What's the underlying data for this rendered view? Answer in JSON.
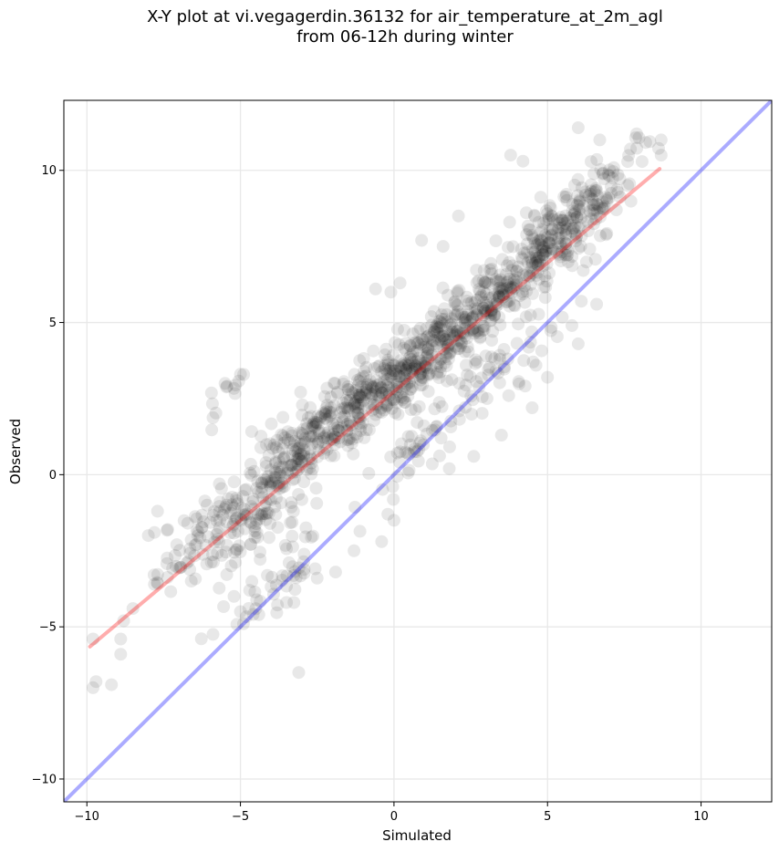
{
  "chart_data": {
    "type": "scatter",
    "title_line1": "X-Y plot at vi.vegagerdin.36132 for air_temperature_at_2m_agl",
    "title_line2": "from 06-12h during winter",
    "xlabel": "Simulated",
    "ylabel": "Observed",
    "xlim": [
      -10.75,
      12.3
    ],
    "ylim": [
      -10.75,
      12.3
    ],
    "xticks": [
      -10,
      -5,
      0,
      5,
      10
    ],
    "yticks": [
      -10,
      -5,
      0,
      5,
      10
    ],
    "xtick_labels": [
      "−10",
      "−5",
      "0",
      "5",
      "10"
    ],
    "ytick_labels": [
      "−10",
      "−5",
      "0",
      "5",
      "10"
    ],
    "grid": true,
    "point_color": "#000000",
    "point_alpha": 0.09,
    "series": [
      {
        "kind": "reference-line",
        "color": "#0000ff",
        "x": [
          -10.75,
          12.3
        ],
        "y": [
          -10.75,
          12.3
        ]
      },
      {
        "kind": "fit-line",
        "color": "#ff0000",
        "x": [
          -9.9,
          8.65
        ],
        "y": [
          -5.65,
          10.05
        ]
      }
    ],
    "clusters": [
      {
        "cx": 0.3,
        "cy": 3.4,
        "sx": 1.3,
        "sy": 1.0,
        "n": 240
      },
      {
        "cx": 1.8,
        "cy": 4.5,
        "sx": 1.2,
        "sy": 1.0,
        "n": 160
      },
      {
        "cx": 3.8,
        "cy": 6.3,
        "sx": 1.2,
        "sy": 1.1,
        "n": 150
      },
      {
        "cx": 5.4,
        "cy": 7.8,
        "sx": 1.1,
        "sy": 1.2,
        "n": 150
      },
      {
        "cx": 6.5,
        "cy": 9.0,
        "sx": 1.0,
        "sy": 1.1,
        "n": 60
      },
      {
        "cx": -1.8,
        "cy": 2.0,
        "sx": 1.2,
        "sy": 1.2,
        "n": 140
      },
      {
        "cx": -3.4,
        "cy": 0.6,
        "sx": 1.1,
        "sy": 1.2,
        "n": 130
      },
      {
        "cx": -4.5,
        "cy": -1.4,
        "sx": 0.9,
        "sy": 1.3,
        "n": 100
      },
      {
        "cx": -6.5,
        "cy": -2.1,
        "sx": 0.8,
        "sy": 1.0,
        "n": 55
      },
      {
        "cx": 1.2,
        "cy": 1.3,
        "sx": 1.1,
        "sy": 1.1,
        "n": 60
      },
      {
        "cx": 3.5,
        "cy": 3.4,
        "sx": 1.0,
        "sy": 1.0,
        "n": 40
      },
      {
        "cx": -3.6,
        "cy": -3.5,
        "sx": 0.9,
        "sy": 0.9,
        "n": 45
      },
      {
        "cx": -5.5,
        "cy": 2.5,
        "sx": 0.5,
        "sy": 0.6,
        "n": 12
      }
    ],
    "outliers": [
      [
        -9.8,
        -7.0
      ],
      [
        -9.7,
        -6.8
      ],
      [
        -9.2,
        -6.9
      ],
      [
        -9.8,
        -5.4
      ],
      [
        -8.9,
        -5.9
      ],
      [
        -8.9,
        -5.4
      ],
      [
        -8.8,
        -4.8
      ],
      [
        -8.5,
        -4.4
      ],
      [
        -8.0,
        -2.0
      ],
      [
        -7.8,
        -1.9
      ],
      [
        -7.7,
        -1.2
      ],
      [
        -7.8,
        -3.6
      ],
      [
        -6.6,
        -3.5
      ],
      [
        -3.1,
        -6.5
      ],
      [
        -5.0,
        -4.5
      ],
      [
        -4.9,
        -4.9
      ],
      [
        -4.7,
        -3.8
      ],
      [
        -5.3,
        -3.0
      ],
      [
        -5.0,
        3.3
      ],
      [
        -5.5,
        3.0
      ],
      [
        0.9,
        7.7
      ],
      [
        1.6,
        7.5
      ],
      [
        2.1,
        8.5
      ],
      [
        3.8,
        10.5
      ],
      [
        4.2,
        10.3
      ],
      [
        6.0,
        11.4
      ],
      [
        6.7,
        11.0
      ],
      [
        7.7,
        10.7
      ],
      [
        7.9,
        11.2
      ],
      [
        8.7,
        11.0
      ],
      [
        8.7,
        10.5
      ],
      [
        -0.6,
        6.1
      ],
      [
        -0.1,
        6.0
      ],
      [
        0.2,
        6.3
      ],
      [
        2.6,
        0.6
      ],
      [
        3.5,
        1.3
      ],
      [
        1.8,
        0.2
      ],
      [
        -0.2,
        -1.3
      ],
      [
        0.0,
        -1.5
      ],
      [
        -0.4,
        -2.2
      ],
      [
        -1.3,
        -2.5
      ],
      [
        6.1,
        5.7
      ],
      [
        6.6,
        5.6
      ],
      [
        6.0,
        4.3
      ],
      [
        5.0,
        3.2
      ],
      [
        4.5,
        2.2
      ],
      [
        -1.9,
        -3.2
      ],
      [
        -2.5,
        -3.4
      ],
      [
        -4.4,
        -4.6
      ],
      [
        -3.5,
        -4.2
      ]
    ]
  }
}
